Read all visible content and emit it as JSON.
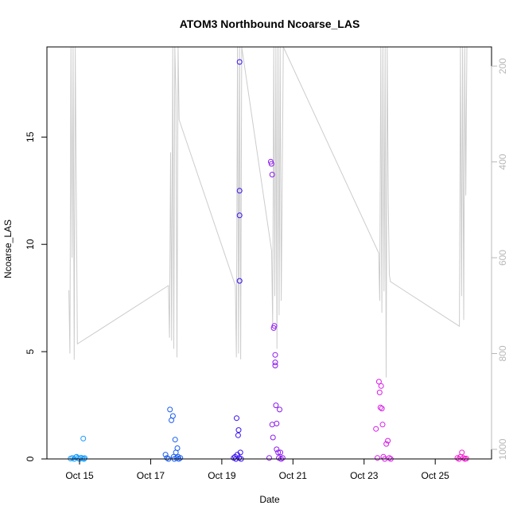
{
  "chart_data": {
    "type": "scatter",
    "title": "ATOM3 Northbound Ncoarse_LAS",
    "xlabel": "Date",
    "ylabel": "Ncoarse_LAS",
    "x_ticks": [
      "Oct 15",
      "Oct 17",
      "Oct 19",
      "Oct 21",
      "Oct 23",
      "Oct 25"
    ],
    "y_ticks": [
      "0",
      "5",
      "10",
      "15"
    ],
    "y_right_ticks": [
      "200",
      "400",
      "600",
      "800",
      "1000"
    ],
    "xlim": [
      "2016-10-14 02:00",
      "2016-10-26 14:00"
    ],
    "ylim": [
      0,
      19.2
    ],
    "y_right_lim": [
      1020,
      160
    ],
    "y_right_scale": "inverted",
    "grid": false,
    "legend": "none",
    "colors": {
      "altitude_line": "#cccccc",
      "right_axis": "#b8b8b8",
      "points_gradient": [
        "#00bfff",
        "#0000ff",
        "#ff00ff"
      ]
    },
    "series": [
      {
        "points": [
          [
            "2016-10-14 18:00",
            0.02,
            "#1a9cff"
          ],
          [
            "2016-10-14 19:12",
            0.05,
            "#1a9cff"
          ],
          [
            "2016-10-14 20:24",
            0.0,
            "#1a9cff"
          ],
          [
            "2016-10-14 21:36",
            0.08,
            "#1a9cff"
          ],
          [
            "2016-10-14 22:00",
            0.1,
            "#1a9cff"
          ],
          [
            "2016-10-14 23:00",
            0.03,
            "#1a9cff"
          ],
          [
            "2016-10-15 00:00",
            0.0,
            "#1a9cff"
          ],
          [
            "2016-10-15 01:00",
            0.06,
            "#1a9cff"
          ],
          [
            "2016-10-15 02:00",
            0.02,
            "#1a9cff"
          ],
          [
            "2016-10-15 02:30",
            0.95,
            "#1a9cff"
          ],
          [
            "2016-10-15 03:00",
            0.0,
            "#1a9cff"
          ],
          [
            "2016-10-15 03:30",
            0.04,
            "#1a9cff"
          ],
          [
            "2016-10-17 10:00",
            0.2,
            "#1a5cf0"
          ],
          [
            "2016-10-17 11:00",
            0.05,
            "#1a5cf0"
          ],
          [
            "2016-10-17 12:00",
            0.0,
            "#1a5cf0"
          ],
          [
            "2016-10-17 13:00",
            2.3,
            "#1a5cf0"
          ],
          [
            "2016-10-17 14:00",
            1.8,
            "#1a5cf0"
          ],
          [
            "2016-10-17 15:00",
            2.0,
            "#1a5cf0"
          ],
          [
            "2016-10-17 15:30",
            0.1,
            "#1a5cf0"
          ],
          [
            "2016-10-17 16:00",
            0.0,
            "#1a5cf0"
          ],
          [
            "2016-10-17 16:30",
            0.9,
            "#1a5cf0"
          ],
          [
            "2016-10-17 17:00",
            0.3,
            "#1a5cf0"
          ],
          [
            "2016-10-17 17:30",
            0.05,
            "#1a5cf0"
          ],
          [
            "2016-10-17 18:00",
            0.5,
            "#1a5cf0"
          ],
          [
            "2016-10-17 18:30",
            0.1,
            "#1a5cf0"
          ],
          [
            "2016-10-17 19:00",
            0.0,
            "#1a5cf0"
          ],
          [
            "2016-10-17 20:00",
            0.05,
            "#1a5cf0"
          ],
          [
            "2016-10-19 08:00",
            0.05,
            "#3a10f0"
          ],
          [
            "2016-10-19 09:00",
            0.1,
            "#3a10f0"
          ],
          [
            "2016-10-19 09:30",
            0.0,
            "#3a10f0"
          ],
          [
            "2016-10-19 10:00",
            1.9,
            "#3a10f0"
          ],
          [
            "2016-10-19 10:30",
            0.2,
            "#3a10f0"
          ],
          [
            "2016-10-19 11:00",
            1.1,
            "#3a10f0"
          ],
          [
            "2016-10-19 11:20",
            1.35,
            "#3a10f0"
          ],
          [
            "2016-10-19 11:40",
            0.05,
            "#3a10f0"
          ],
          [
            "2016-10-19 12:00",
            18.5,
            "#3a10f0"
          ],
          [
            "2016-10-19 12:00",
            12.5,
            "#3a10f0"
          ],
          [
            "2016-10-19 12:00",
            11.35,
            "#3a10f0"
          ],
          [
            "2016-10-19 12:00",
            8.3,
            "#3a10f0"
          ],
          [
            "2016-10-19 12:30",
            0.3,
            "#3a10f0"
          ],
          [
            "2016-10-19 13:00",
            0.0,
            "#3a10f0"
          ],
          [
            "2016-10-20 08:00",
            0.05,
            "#8c1af0"
          ],
          [
            "2016-10-20 09:00",
            13.85,
            "#8c1af0"
          ],
          [
            "2016-10-20 09:30",
            13.75,
            "#8c1af0"
          ],
          [
            "2016-10-20 10:00",
            13.25,
            "#8c1af0"
          ],
          [
            "2016-10-20 10:00",
            1.6,
            "#8c1af0"
          ],
          [
            "2016-10-20 10:30",
            1.0,
            "#8c1af0"
          ],
          [
            "2016-10-20 11:00",
            6.1,
            "#8c1af0"
          ],
          [
            "2016-10-20 11:30",
            6.2,
            "#8c1af0"
          ],
          [
            "2016-10-20 12:00",
            4.85,
            "#8c1af0"
          ],
          [
            "2016-10-20 12:00",
            4.5,
            "#8c1af0"
          ],
          [
            "2016-10-20 12:00",
            4.35,
            "#8c1af0"
          ],
          [
            "2016-10-20 12:30",
            2.5,
            "#8c1af0"
          ],
          [
            "2016-10-20 13:00",
            1.65,
            "#8c1af0"
          ],
          [
            "2016-10-20 13:00",
            0.45,
            "#8c1af0"
          ],
          [
            "2016-10-20 14:00",
            0.3,
            "#8c1af0"
          ],
          [
            "2016-10-20 14:30",
            0.05,
            "#8c1af0"
          ],
          [
            "2016-10-20 15:00",
            2.3,
            "#8c1af0"
          ],
          [
            "2016-10-20 15:30",
            0.3,
            "#8c1af0"
          ],
          [
            "2016-10-20 16:00",
            0.0,
            "#8c1af0"
          ],
          [
            "2016-10-20 17:00",
            0.05,
            "#8c1af0"
          ],
          [
            "2016-10-23 08:00",
            1.4,
            "#d91ae8"
          ],
          [
            "2016-10-23 09:00",
            0.05,
            "#d91ae8"
          ],
          [
            "2016-10-23 10:00",
            3.6,
            "#d91ae8"
          ],
          [
            "2016-10-23 10:30",
            3.1,
            "#d91ae8"
          ],
          [
            "2016-10-23 11:00",
            2.4,
            "#d91ae8"
          ],
          [
            "2016-10-23 11:30",
            3.4,
            "#d91ae8"
          ],
          [
            "2016-10-23 12:00",
            2.35,
            "#d91ae8"
          ],
          [
            "2016-10-23 12:30",
            1.6,
            "#d91ae8"
          ],
          [
            "2016-10-23 13:00",
            0.1,
            "#d91ae8"
          ],
          [
            "2016-10-23 14:00",
            0.0,
            "#d91ae8"
          ],
          [
            "2016-10-23 15:00",
            0.7,
            "#d91ae8"
          ],
          [
            "2016-10-23 16:00",
            0.85,
            "#d91ae8"
          ],
          [
            "2016-10-23 17:00",
            0.05,
            "#d91ae8"
          ],
          [
            "2016-10-23 18:00",
            0.0,
            "#d91ae8"
          ],
          [
            "2016-10-25 15:00",
            0.05,
            "#f21ad0"
          ],
          [
            "2016-10-25 16:00",
            0.0,
            "#f21ad0"
          ],
          [
            "2016-10-25 17:00",
            0.1,
            "#f21ad0"
          ],
          [
            "2016-10-25 18:00",
            0.3,
            "#f21ad0"
          ],
          [
            "2016-10-25 19:00",
            0.05,
            "#f21ad0"
          ],
          [
            "2016-10-25 20:00",
            0.0,
            "#f21ad0"
          ],
          [
            "2016-10-25 21:00",
            0.02,
            "#f21ad0"
          ]
        ]
      },
      {
        "line_x": [
          "2016-10-14 16:48",
          "2016-10-14 17:31",
          "2016-10-14 18:14",
          "2016-10-14 18:58",
          "2016-10-14 19:41",
          "2016-10-14 20:24",
          "2016-10-14 21:07",
          "2016-10-14 22:34",
          "2016-10-17 12:00",
          "2016-10-17 12:43",
          "2016-10-17 13:26",
          "2016-10-17 14:10",
          "2016-10-17 14:53",
          "2016-10-17 15:36",
          "2016-10-17 16:19",
          "2016-10-17 17:02",
          "2016-10-17 17:46",
          "2016-10-17 18:29",
          "2016-10-17 19:12",
          "2016-10-19 09:07",
          "2016-10-19 09:50",
          "2016-10-19 10:34",
          "2016-10-19 11:17",
          "2016-10-19 12:00",
          "2016-10-19 12:43",
          "2016-10-19 13:26",
          "2016-10-20 09:36",
          "2016-10-20 10:19",
          "2016-10-20 11:02",
          "2016-10-20 11:46",
          "2016-10-20 12:29",
          "2016-10-20 13:12",
          "2016-10-20 13:55",
          "2016-10-20 14:38",
          "2016-10-20 15:22",
          "2016-10-20 16:05",
          "2016-10-20 17:31",
          "2016-10-23 09:50",
          "2016-10-23 10:34",
          "2016-10-23 11:17",
          "2016-10-23 12:00",
          "2016-10-23 12:43",
          "2016-10-23 13:26",
          "2016-10-23 14:10",
          "2016-10-23 14:53",
          "2016-10-23 15:36",
          "2016-10-23 16:19",
          "2016-10-23 17:02",
          "2016-10-23 17:46",
          "2016-10-25 16:19",
          "2016-10-25 17:02",
          "2016-10-25 17:46",
          "2016-10-25 18:29",
          "2016-10-25 19:12",
          "2016-10-25 19:55",
          "2016-10-25 20:38",
          "2016-10-25 21:22"
        ],
        "line_y_right": [
          668,
          800,
          160,
          600,
          160,
          813,
          160,
          780,
          658,
          767,
          380,
          773,
          160,
          790,
          160,
          260,
          808,
          160,
          312,
          658,
          808,
          160,
          800,
          160,
          812,
          160,
          586,
          740,
          160,
          680,
          160,
          790,
          160,
          720,
          160,
          690,
          160,
          590,
          690,
          160,
          715,
          160,
          670,
          160,
          850,
          160,
          490,
          636,
          650,
          743,
          160,
          680,
          160,
          730,
          160,
          470,
          160
        ]
      }
    ]
  }
}
